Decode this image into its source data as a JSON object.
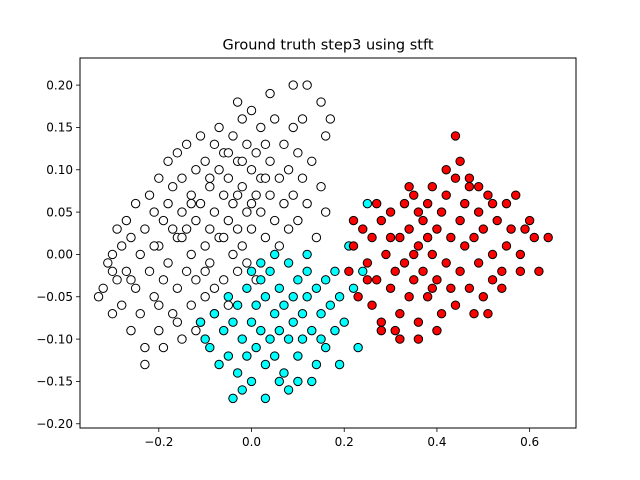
{
  "chart_data": {
    "type": "scatter",
    "title": "Ground truth step3 using stft",
    "xlabel": "",
    "ylabel": "",
    "xlim": [
      -0.37,
      0.7
    ],
    "ylim": [
      -0.205,
      0.232
    ],
    "x_ticks": [
      -0.2,
      0.0,
      0.2,
      0.4,
      0.6
    ],
    "x_tick_labels": [
      "−0.2",
      "0.0",
      "0.2",
      "0.4",
      "0.6"
    ],
    "y_ticks": [
      -0.2,
      -0.15,
      -0.1,
      -0.05,
      0.0,
      0.05,
      0.1,
      0.15,
      0.2
    ],
    "y_tick_labels": [
      "−0.20",
      "−0.15",
      "−0.10",
      "−0.05",
      "0.00",
      "0.05",
      "0.10",
      "0.15",
      "0.20"
    ],
    "grid": false,
    "marker_edge_color": "#000000",
    "series": [
      {
        "color": "#ffffff",
        "points": [
          [
            -0.33,
            -0.05
          ],
          [
            -0.32,
            -0.04
          ],
          [
            -0.31,
            -0.01
          ],
          [
            -0.3,
            0.0
          ],
          [
            -0.3,
            -0.07
          ],
          [
            -0.29,
            0.03
          ],
          [
            -0.29,
            -0.03
          ],
          [
            -0.28,
            0.01
          ],
          [
            -0.28,
            -0.06
          ],
          [
            -0.27,
            -0.02
          ],
          [
            -0.27,
            0.04
          ],
          [
            -0.26,
            -0.09
          ],
          [
            -0.26,
            0.02
          ],
          [
            -0.25,
            -0.04
          ],
          [
            -0.25,
            0.06
          ],
          [
            -0.24,
            0.0
          ],
          [
            -0.24,
            -0.07
          ],
          [
            -0.23,
            0.03
          ],
          [
            -0.23,
            -0.11
          ],
          [
            -0.22,
            0.07
          ],
          [
            -0.22,
            -0.02
          ],
          [
            -0.21,
            0.05
          ],
          [
            -0.21,
            -0.05
          ],
          [
            -0.2,
            0.09
          ],
          [
            -0.2,
            0.01
          ],
          [
            -0.2,
            -0.09
          ],
          [
            -0.19,
            0.04
          ],
          [
            -0.19,
            -0.03
          ],
          [
            -0.18,
            0.11
          ],
          [
            -0.18,
            0.06
          ],
          [
            -0.18,
            -0.01
          ],
          [
            -0.17,
            -0.07
          ],
          [
            -0.17,
            0.08
          ],
          [
            -0.16,
            0.02
          ],
          [
            -0.16,
            -0.04
          ],
          [
            -0.16,
            0.12
          ],
          [
            -0.15,
            0.05
          ],
          [
            -0.15,
            -0.1
          ],
          [
            -0.15,
            0.09
          ],
          [
            -0.14,
            -0.02
          ],
          [
            -0.14,
            0.03
          ],
          [
            -0.14,
            0.13
          ],
          [
            -0.13,
            -0.06
          ],
          [
            -0.13,
            0.07
          ],
          [
            -0.13,
            0.0
          ],
          [
            -0.12,
            0.1
          ],
          [
            -0.12,
            -0.03
          ],
          [
            -0.12,
            0.04
          ],
          [
            -0.11,
            0.14
          ],
          [
            -0.11,
            -0.08
          ],
          [
            -0.11,
            0.06
          ],
          [
            -0.1,
            0.01
          ],
          [
            -0.1,
            0.11
          ],
          [
            -0.1,
            -0.05
          ],
          [
            -0.09,
            0.08
          ],
          [
            -0.09,
            0.03
          ],
          [
            -0.09,
            -0.01
          ],
          [
            -0.08,
            0.13
          ],
          [
            -0.08,
            0.05
          ],
          [
            -0.08,
            -0.07
          ],
          [
            -0.07,
            0.1
          ],
          [
            -0.07,
            0.02
          ],
          [
            -0.07,
            0.15
          ],
          [
            -0.06,
            -0.03
          ],
          [
            -0.06,
            0.07
          ],
          [
            -0.06,
            0.12
          ],
          [
            -0.05,
            0.04
          ],
          [
            -0.05,
            -0.06
          ],
          [
            -0.05,
            0.09
          ],
          [
            -0.04,
            0.0
          ],
          [
            -0.04,
            0.14
          ],
          [
            -0.04,
            0.06
          ],
          [
            -0.03,
            0.11
          ],
          [
            -0.03,
            -0.02
          ],
          [
            -0.03,
            0.03
          ],
          [
            -0.02,
            0.16
          ],
          [
            -0.02,
            0.08
          ],
          [
            -0.02,
            0.01
          ],
          [
            -0.01,
            0.13
          ],
          [
            -0.01,
            0.05
          ],
          [
            -0.01,
            -0.01
          ],
          [
            0.0,
            0.1
          ],
          [
            0.0,
            0.17
          ],
          [
            0.0,
            0.03
          ],
          [
            0.01,
            0.07
          ],
          [
            0.01,
            0.12
          ],
          [
            0.01,
            -0.03
          ],
          [
            0.02,
            0.15
          ],
          [
            0.02,
            0.05
          ],
          [
            0.02,
            0.09
          ],
          [
            0.03,
            0.02
          ],
          [
            0.03,
            0.13
          ],
          [
            0.04,
            0.07
          ],
          [
            0.04,
            0.11
          ],
          [
            0.05,
            0.04
          ],
          [
            0.05,
            0.16
          ],
          [
            0.06,
            0.09
          ],
          [
            0.06,
            0.01
          ],
          [
            0.07,
            0.13
          ],
          [
            0.07,
            0.06
          ],
          [
            0.08,
            0.1
          ],
          [
            0.08,
            0.03
          ],
          [
            0.09,
            0.15
          ],
          [
            0.09,
            0.07
          ],
          [
            0.1,
            0.12
          ],
          [
            0.1,
            0.04
          ],
          [
            0.11,
            0.09
          ],
          [
            0.11,
            0.16
          ],
          [
            0.12,
            0.06
          ],
          [
            0.13,
            0.11
          ],
          [
            0.14,
            0.02
          ],
          [
            0.15,
            0.08
          ],
          [
            0.16,
            0.14
          ],
          [
            0.12,
            0.2
          ],
          [
            0.09,
            0.2
          ],
          [
            0.15,
            0.18
          ],
          [
            0.17,
            0.16
          ],
          [
            0.16,
            0.05
          ],
          [
            0.04,
            0.19
          ],
          [
            -0.03,
            0.18
          ],
          [
            -0.23,
            -0.13
          ],
          [
            -0.19,
            -0.11
          ],
          [
            -0.26,
            -0.03
          ],
          [
            -0.3,
            -0.02
          ],
          [
            -0.21,
            0.01
          ],
          [
            -0.17,
            0.03
          ],
          [
            -0.13,
            0.06
          ],
          [
            -0.09,
            0.09
          ],
          [
            -0.05,
            0.12
          ],
          [
            -0.02,
            0.11
          ],
          [
            -0.15,
            0.02
          ],
          [
            -0.1,
            -0.02
          ],
          [
            -0.06,
            0.02
          ],
          [
            -0.03,
            0.07
          ],
          [
            0.0,
            0.06
          ],
          [
            0.03,
            0.09
          ],
          [
            -0.2,
            -0.06
          ],
          [
            -0.16,
            -0.08
          ],
          [
            -0.12,
            -0.09
          ],
          [
            -0.08,
            -0.04
          ]
        ]
      },
      {
        "color": "#00ffff",
        "points": [
          [
            -0.11,
            -0.08
          ],
          [
            -0.09,
            -0.11
          ],
          [
            -0.08,
            -0.07
          ],
          [
            -0.07,
            -0.13
          ],
          [
            -0.06,
            -0.09
          ],
          [
            -0.05,
            -0.05
          ],
          [
            -0.05,
            -0.12
          ],
          [
            -0.04,
            -0.08
          ],
          [
            -0.03,
            -0.14
          ],
          [
            -0.03,
            -0.06
          ],
          [
            -0.02,
            -0.1
          ],
          [
            -0.01,
            -0.04
          ],
          [
            -0.01,
            -0.12
          ],
          [
            0.0,
            -0.08
          ],
          [
            0.0,
            -0.15
          ],
          [
            0.01,
            -0.06
          ],
          [
            0.01,
            -0.11
          ],
          [
            0.02,
            -0.03
          ],
          [
            0.02,
            -0.09
          ],
          [
            0.03,
            -0.13
          ],
          [
            0.03,
            -0.05
          ],
          [
            0.04,
            -0.1
          ],
          [
            0.04,
            -0.02
          ],
          [
            0.05,
            -0.07
          ],
          [
            0.05,
            -0.12
          ],
          [
            0.06,
            -0.04
          ],
          [
            0.06,
            -0.09
          ],
          [
            0.07,
            -0.14
          ],
          [
            0.07,
            -0.06
          ],
          [
            0.08,
            -0.01
          ],
          [
            0.08,
            -0.1
          ],
          [
            0.09,
            -0.05
          ],
          [
            0.09,
            -0.08
          ],
          [
            0.1,
            -0.12
          ],
          [
            0.1,
            -0.03
          ],
          [
            0.11,
            -0.07
          ],
          [
            0.11,
            -0.1
          ],
          [
            0.12,
            -0.05
          ],
          [
            0.12,
            0.0
          ],
          [
            0.13,
            -0.09
          ],
          [
            0.14,
            -0.04
          ],
          [
            0.14,
            -0.13
          ],
          [
            0.15,
            -0.07
          ],
          [
            0.16,
            -0.03
          ],
          [
            0.16,
            -0.11
          ],
          [
            0.17,
            -0.06
          ],
          [
            0.18,
            -0.02
          ],
          [
            0.18,
            -0.09
          ],
          [
            0.19,
            -0.05
          ],
          [
            0.2,
            -0.08
          ],
          [
            0.21,
            0.01
          ],
          [
            0.22,
            -0.04
          ],
          [
            0.23,
            -0.11
          ],
          [
            0.24,
            -0.02
          ],
          [
            0.25,
            0.06
          ],
          [
            0.19,
            -0.13
          ],
          [
            0.08,
            -0.16
          ],
          [
            -0.02,
            -0.16
          ],
          [
            -0.04,
            -0.17
          ],
          [
            0.03,
            -0.17
          ],
          [
            0.06,
            -0.15
          ],
          [
            0.13,
            -0.15
          ],
          [
            0.15,
            -0.1
          ],
          [
            0.1,
            -0.15
          ],
          [
            0.12,
            -0.02
          ],
          [
            0.02,
            -0.01
          ],
          [
            0.05,
            0.0
          ],
          [
            -0.1,
            -0.1
          ],
          [
            0.0,
            -0.02
          ]
        ]
      },
      {
        "color": "#ff0000",
        "points": [
          [
            0.21,
            -0.02
          ],
          [
            0.22,
            0.01
          ],
          [
            0.23,
            -0.05
          ],
          [
            0.24,
            0.03
          ],
          [
            0.25,
            -0.01
          ],
          [
            0.26,
            -0.06
          ],
          [
            0.26,
            0.02
          ],
          [
            0.27,
            -0.03
          ],
          [
            0.28,
            0.04
          ],
          [
            0.28,
            -0.08
          ],
          [
            0.29,
            0.0
          ],
          [
            0.3,
            -0.04
          ],
          [
            0.3,
            0.05
          ],
          [
            0.31,
            -0.02
          ],
          [
            0.32,
            0.02
          ],
          [
            0.32,
            -0.07
          ],
          [
            0.33,
            0.06
          ],
          [
            0.33,
            -0.01
          ],
          [
            0.34,
            -0.05
          ],
          [
            0.34,
            0.03
          ],
          [
            0.35,
            0.07
          ],
          [
            0.35,
            -0.03
          ],
          [
            0.36,
            0.01
          ],
          [
            0.36,
            -0.08
          ],
          [
            0.37,
            0.04
          ],
          [
            0.37,
            -0.02
          ],
          [
            0.38,
            0.06
          ],
          [
            0.38,
            -0.05
          ],
          [
            0.39,
            0.0
          ],
          [
            0.39,
            0.08
          ],
          [
            0.4,
            -0.03
          ],
          [
            0.4,
            0.03
          ],
          [
            0.41,
            -0.07
          ],
          [
            0.41,
            0.05
          ],
          [
            0.42,
            -0.01
          ],
          [
            0.42,
            0.07
          ],
          [
            0.43,
            -0.04
          ],
          [
            0.43,
            0.02
          ],
          [
            0.44,
            0.09
          ],
          [
            0.44,
            -0.06
          ],
          [
            0.45,
            0.04
          ],
          [
            0.45,
            -0.02
          ],
          [
            0.46,
            0.06
          ],
          [
            0.46,
            0.01
          ],
          [
            0.47,
            -0.04
          ],
          [
            0.47,
            0.08
          ],
          [
            0.48,
            0.02
          ],
          [
            0.48,
            -0.07
          ],
          [
            0.49,
            0.05
          ],
          [
            0.49,
            -0.01
          ],
          [
            0.5,
            0.03
          ],
          [
            0.5,
            -0.05
          ],
          [
            0.51,
            0.07
          ],
          [
            0.52,
            0.0
          ],
          [
            0.52,
            -0.03
          ],
          [
            0.53,
            0.04
          ],
          [
            0.54,
            -0.02
          ],
          [
            0.55,
            0.06
          ],
          [
            0.55,
            0.01
          ],
          [
            0.56,
            0.03
          ],
          [
            0.57,
            0.07
          ],
          [
            0.58,
            0.0
          ],
          [
            0.59,
            0.03
          ],
          [
            0.6,
            0.04
          ],
          [
            0.61,
            0.02
          ],
          [
            0.62,
            -0.02
          ],
          [
            0.64,
            0.02
          ],
          [
            0.58,
            -0.02
          ],
          [
            0.54,
            -0.04
          ],
          [
            0.51,
            -0.07
          ],
          [
            0.44,
            0.14
          ],
          [
            0.45,
            0.11
          ],
          [
            0.32,
            -0.1
          ],
          [
            0.28,
            -0.09
          ],
          [
            0.31,
            -0.09
          ],
          [
            0.36,
            -0.1
          ],
          [
            0.4,
            -0.09
          ],
          [
            0.27,
            0.06
          ],
          [
            0.34,
            0.08
          ],
          [
            0.36,
            0.05
          ],
          [
            0.42,
            0.1
          ],
          [
            0.47,
            0.09
          ],
          [
            0.49,
            0.08
          ],
          [
            0.52,
            0.06
          ],
          [
            0.38,
            0.02
          ],
          [
            0.39,
            -0.04
          ],
          [
            0.35,
            0.0
          ],
          [
            0.3,
            0.02
          ],
          [
            0.25,
            -0.03
          ],
          [
            0.22,
            0.04
          ]
        ]
      }
    ]
  }
}
